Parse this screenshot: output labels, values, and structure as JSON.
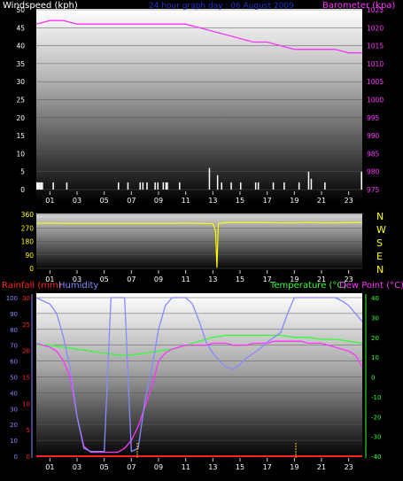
{
  "top": {
    "left_label": "Windspeed (kph)",
    "title": "24 hour graph day : 06 August 2009",
    "right_label": "Barometer (kpa)",
    "left_ticks": [
      "0",
      "5",
      "10",
      "15",
      "20",
      "25",
      "30",
      "35",
      "40",
      "45",
      "50"
    ],
    "right_ticks": [
      "975",
      "980",
      "985",
      "990",
      "995",
      "1000",
      "1005",
      "1010",
      "1015",
      "1020",
      "1025"
    ],
    "x_ticks": [
      "01",
      "03",
      "05",
      "07",
      "09",
      "11",
      "13",
      "15",
      "17",
      "19",
      "21",
      "23"
    ]
  },
  "middle": {
    "left_ticks": [
      "0",
      "90",
      "180",
      "270",
      "360"
    ],
    "compass": [
      "N",
      "W",
      "S",
      "E",
      "N"
    ],
    "x_ticks": [
      "01",
      "03",
      "05",
      "07",
      "09",
      "11",
      "13",
      "15",
      "17",
      "19",
      "21",
      "23"
    ]
  },
  "bottom": {
    "rain_label": "Rainfall (mm)",
    "hum_label": "Humidity",
    "temp_label": "Temperature (°C)",
    "dew_label": "Dew Point (°C)",
    "hum_ticks": [
      "0",
      "10",
      "20",
      "30",
      "40",
      "50",
      "60",
      "70",
      "80",
      "90",
      "100"
    ],
    "rain_ticks": [
      "0",
      "5",
      "10",
      "15",
      "20",
      "25",
      "30"
    ],
    "temp_ticks": [
      "-40",
      "-30",
      "-20",
      "-10",
      "0",
      "10",
      "20",
      "30",
      "40"
    ],
    "x_ticks": [
      "01",
      "03",
      "05",
      "07",
      "09",
      "11",
      "13",
      "15",
      "17",
      "19",
      "21",
      "23"
    ]
  },
  "colors": {
    "wind": "#ffffff",
    "baro": "#ff33ff",
    "dir": "#ffff00",
    "rain": "#ff2222",
    "humidity": "#8888ff",
    "temperature": "#33ff33",
    "dew": "#ff33ff",
    "title": "#2233cc"
  },
  "chart_data": [
    {
      "type": "bar+line",
      "x_range": [
        0,
        24
      ],
      "wind_ylim": [
        0,
        50
      ],
      "baro_ylim": [
        975,
        1025
      ],
      "series": [
        {
          "x": [
            0,
            1,
            2,
            3,
            4,
            5,
            6,
            7,
            8,
            9,
            10,
            11,
            12,
            13,
            14,
            15,
            16,
            17,
            18,
            19,
            20,
            21,
            22,
            23,
            24
          ],
          "values": [
            1021,
            1022,
            1022,
            1021,
            1021,
            1021,
            1021,
            1021,
            1021,
            1021,
            1021,
            1021,
            1020,
            1019,
            1018,
            1017,
            1016,
            1016,
            1015,
            1014,
            1014,
            1014,
            1014,
            1013,
            1013
          ]
        },
        {
          "x": [
            0,
            0.1,
            0.2,
            0.3,
            0.4,
            1.2,
            2.2,
            6.0,
            6.7,
            7.6,
            7.8,
            8.1,
            8.7,
            8.9,
            9.3,
            9.5,
            9.6,
            10.5,
            12.7,
            13.3,
            13.6,
            14.3,
            15.0,
            16.1,
            16.3,
            17.4,
            18.2,
            19.3,
            20.0,
            20.2,
            21.2,
            23.9
          ],
          "values": [
            2,
            2,
            2,
            2,
            2,
            2,
            2,
            2,
            2,
            2,
            2,
            2,
            2,
            2,
            2,
            2,
            2,
            2,
            6,
            4,
            2,
            2,
            2,
            2,
            2,
            2,
            2,
            2,
            5,
            3,
            2,
            5
          ]
        }
      ]
    },
    {
      "type": "line",
      "x_range": [
        0,
        24
      ],
      "ylim": [
        0,
        360
      ],
      "series": [
        {
          "x": [
            0,
            1,
            2,
            3,
            4,
            5,
            6,
            7,
            8,
            9,
            10,
            11,
            12,
            13,
            13.2,
            13.3,
            13.4,
            14,
            15,
            16,
            17,
            18,
            19,
            20,
            21,
            22,
            23,
            24
          ],
          "values": [
            300,
            302,
            300,
            300,
            300,
            300,
            300,
            300,
            300,
            300,
            300,
            302,
            300,
            298,
            250,
            5,
            300,
            305,
            305,
            305,
            305,
            303,
            303,
            305,
            303,
            303,
            305,
            305
          ]
        }
      ]
    },
    {
      "type": "line",
      "x_range": [
        0,
        24
      ],
      "humidity_ylim": [
        0,
        100
      ],
      "rain_ylim": [
        0,
        30
      ],
      "temp_ylim": [
        -40,
        40
      ],
      "series": [
        {
          "x": [
            0,
            0.5,
            1,
            1.5,
            2,
            2.5,
            3,
            3.5,
            4,
            4.5,
            5,
            5.5,
            6,
            6.5,
            7,
            7.5,
            8,
            8.5,
            9,
            9.5,
            10,
            10.5,
            11,
            11.5,
            12,
            12.5,
            13,
            13.5,
            14,
            14.5,
            15,
            15.5,
            16,
            16.5,
            17,
            17.5,
            18,
            18.5,
            19,
            19.5,
            20,
            20.5,
            21,
            21.5,
            22,
            22.5,
            23,
            23.5,
            24
          ],
          "values": [
            100,
            98,
            96,
            90,
            75,
            55,
            25,
            5,
            3,
            3,
            3,
            100,
            100,
            100,
            3,
            5,
            35,
            55,
            80,
            95,
            100,
            100,
            100,
            96,
            85,
            72,
            65,
            60,
            56,
            55,
            58,
            62,
            65,
            68,
            72,
            75,
            78,
            90,
            100,
            100,
            100,
            100,
            100,
            100,
            100,
            98,
            95,
            90,
            85
          ]
        },
        {
          "x": [
            0,
            0.5,
            1,
            1.5,
            2,
            2.5,
            3,
            3.5,
            4,
            4.5,
            5,
            5.5,
            6,
            6.5,
            7,
            7.5,
            8,
            8.5,
            9,
            9.5,
            10,
            10.5,
            11,
            11.5,
            12,
            12.5,
            13,
            13.5,
            14,
            14.5,
            15,
            15.5,
            16,
            16.5,
            17,
            17.5,
            18,
            18.5,
            19,
            19.5,
            20,
            20.5,
            21,
            21.5,
            22,
            22.5,
            23,
            23.5,
            24
          ],
          "values": [
            17,
            16,
            15,
            13,
            8,
            0,
            -20,
            -35,
            -38,
            -38,
            -38,
            -38,
            -38,
            -36,
            -32,
            -25,
            -15,
            -5,
            8,
            12,
            14,
            15,
            16,
            16,
            16,
            16,
            17,
            17,
            17,
            16,
            16,
            16,
            17,
            17,
            17,
            18,
            18,
            18,
            18,
            18,
            17,
            17,
            17,
            16,
            15,
            14,
            13,
            11,
            5
          ]
        },
        {
          "x": [
            0,
            1,
            2,
            3,
            4,
            5,
            6,
            7,
            8,
            9,
            10,
            11,
            12,
            13,
            14,
            15,
            16,
            17,
            18,
            19,
            20,
            21,
            22,
            23,
            24
          ],
          "values": [
            16,
            16,
            15,
            14,
            13,
            12,
            11,
            11,
            12,
            13,
            14,
            16,
            18,
            20,
            21,
            21,
            21,
            21,
            21,
            20,
            20,
            19,
            19,
            18,
            17
          ]
        },
        {
          "x": [
            0,
            24
          ],
          "values": [
            0,
            0
          ]
        }
      ]
    }
  ]
}
